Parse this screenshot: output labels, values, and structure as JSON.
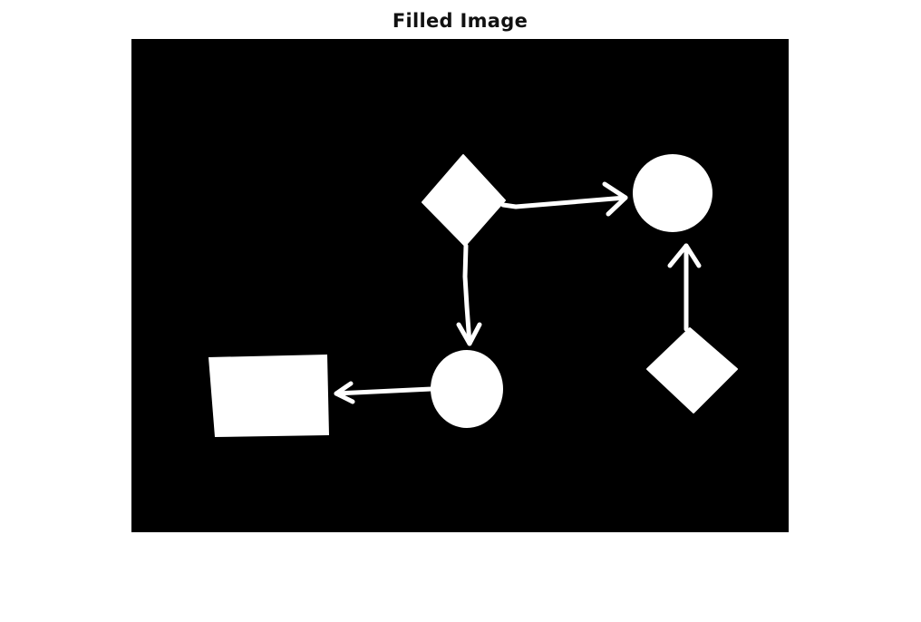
{
  "figure": {
    "title": "Filled Image"
  },
  "colors": {
    "background": "#000000",
    "foreground": "#ffffff",
    "page": "#ffffff"
  },
  "shapes": [
    {
      "name": "diamond-top",
      "kind": "diamond"
    },
    {
      "name": "circle-top-right",
      "kind": "circle"
    },
    {
      "name": "circle-bottom-middle",
      "kind": "circle"
    },
    {
      "name": "rectangle-bottom-left",
      "kind": "rectangle"
    },
    {
      "name": "diamond-bottom-right",
      "kind": "diamond"
    }
  ],
  "connections": [
    {
      "from": "diamond-top",
      "to": "circle-top-right"
    },
    {
      "from": "diamond-top",
      "to": "circle-bottom-middle"
    },
    {
      "from": "circle-bottom-middle",
      "to": "rectangle-bottom-left"
    },
    {
      "from": "diamond-bottom-right",
      "to": "circle-top-right"
    }
  ]
}
